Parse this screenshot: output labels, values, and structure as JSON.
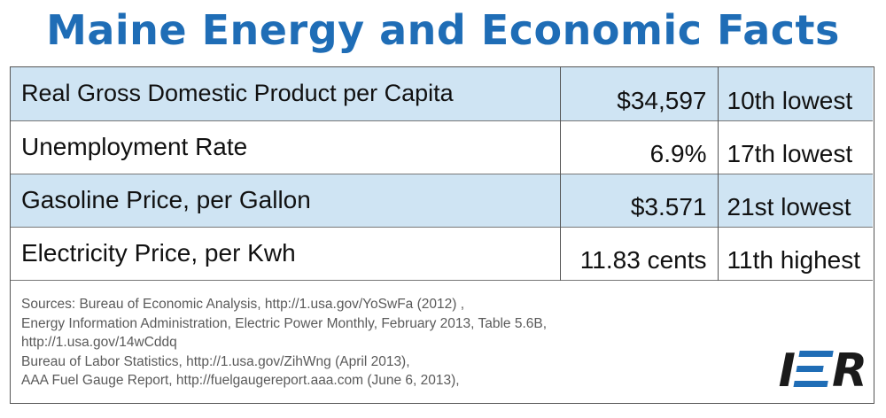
{
  "title": "Maine Energy and Economic Facts",
  "rows": [
    {
      "label": "Real Gross Domestic Product per Capita",
      "value": "$34,597",
      "rank": "10th lowest"
    },
    {
      "label": "Unemployment Rate",
      "value": "6.9%",
      "rank": "17th lowest"
    },
    {
      "label": "Gasoline Price, per Gallon",
      "value": "$3.571",
      "rank": "21st lowest"
    },
    {
      "label": "Electricity Price, per Kwh",
      "value": "11.83 cents",
      "rank": "11th highest"
    }
  ],
  "sources": [
    "Sources: Bureau of Economic Analysis, http://1.usa.gov/YoSwFa (2012) ,",
    "Energy Information Administration, Electric Power Monthly, February 2013, Table 5.6B,",
    "http://1.usa.gov/14wCddq",
    "Bureau of Labor Statistics, http://1.usa.gov/ZihWng (April 2013),",
    "AAA Fuel Gauge Report, http://fuelgaugereport.aaa.com  (June 6, 2013),"
  ],
  "logo": {
    "left": "I",
    "right": "R"
  },
  "colors": {
    "title": "#1f6db6",
    "row_shade": "#cfe4f3",
    "logo_accent": "#1f6db6"
  }
}
